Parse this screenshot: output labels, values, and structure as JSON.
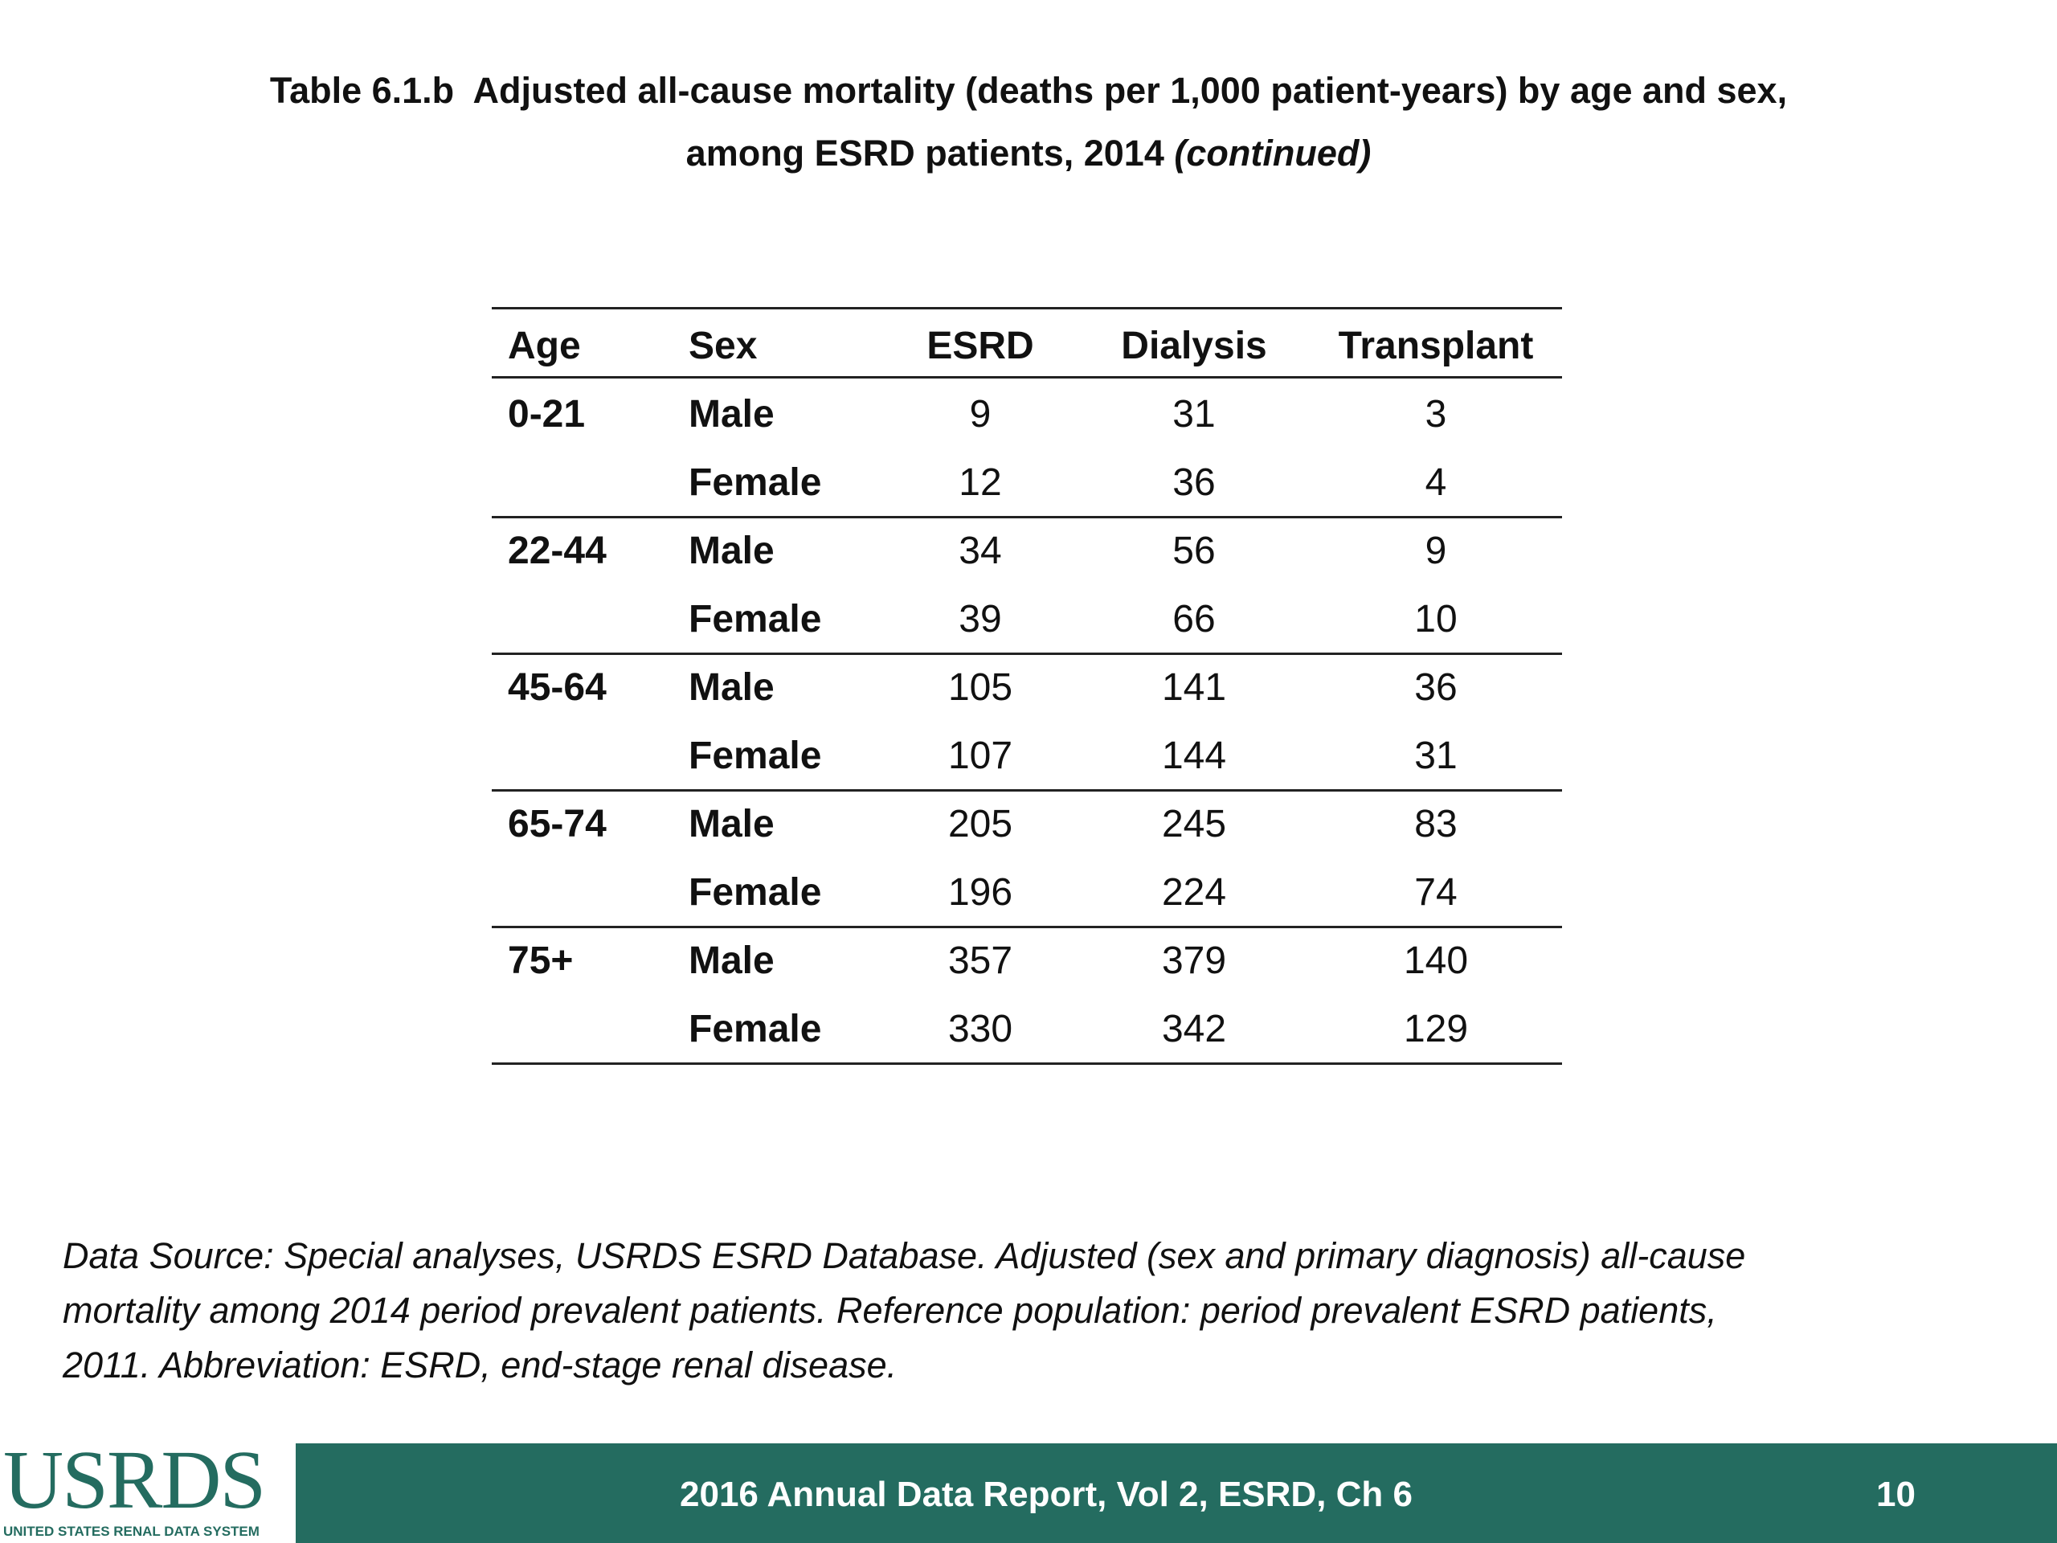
{
  "header": {
    "title_lines": [
      "Table 6.1.b  Adjusted all-cause mortality (deaths per 1,000 patient-years) by age and sex,",
      "among ESRD patients, 2014"
    ],
    "title_note": "(continued)"
  },
  "table": {
    "columns": [
      "Age",
      "Sex",
      "ESRD",
      "Dialysis",
      "Transplant"
    ],
    "groups": [
      {
        "age": "0-21",
        "rows": [
          [
            "Male",
            9,
            31,
            3
          ],
          [
            "Female",
            12,
            36,
            4
          ]
        ]
      },
      {
        "age": "22-44",
        "rows": [
          [
            "Male",
            34,
            56,
            9
          ],
          [
            "Female",
            39,
            66,
            10
          ]
        ]
      },
      {
        "age": "45-64",
        "rows": [
          [
            "Male",
            105,
            141,
            36
          ],
          [
            "Female",
            107,
            144,
            31
          ]
        ]
      },
      {
        "age": "65-74",
        "rows": [
          [
            "Male",
            205,
            245,
            83
          ],
          [
            "Female",
            196,
            224,
            74
          ]
        ]
      },
      {
        "age": "75+",
        "rows": [
          [
            "Male",
            357,
            379,
            140
          ],
          [
            "Female",
            330,
            342,
            129
          ]
        ]
      }
    ]
  },
  "footnote": [
    "Data Source: Special analyses, USRDS ESRD Database. Adjusted (sex and primary diagnosis) all-cause",
    "mortality among 2014 period prevalent patients. Reference population: period prevalent ESRD patients,",
    "2011. Abbreviation: ESRD, end-stage renal disease."
  ],
  "footer": {
    "logo": "USRDS",
    "logo_subtitle": "UNITED STATES RENAL DATA SYSTEM",
    "text": "2016 Annual Data Report, Vol 2, ESRD, Ch 6",
    "page": "10"
  }
}
